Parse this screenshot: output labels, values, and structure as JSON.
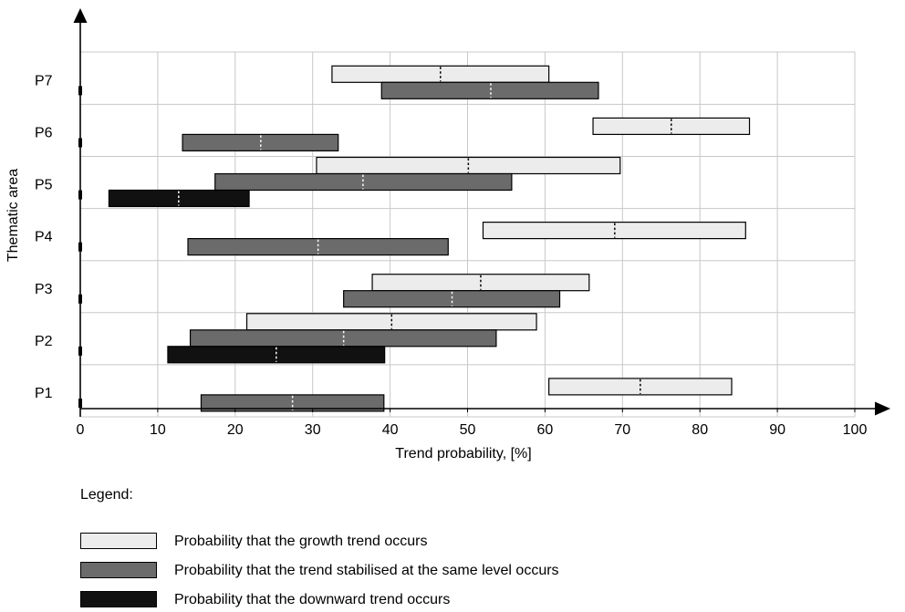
{
  "chart_data": {
    "type": "range-bar",
    "xlabel": "Trend probability, [%]",
    "ylabel": "Thematic area",
    "xlim": [
      0,
      100
    ],
    "x_ticks": [
      0,
      10,
      20,
      30,
      40,
      50,
      60,
      70,
      80,
      90,
      100
    ],
    "categories": [
      "P1",
      "P2",
      "P3",
      "P4",
      "P5",
      "P6",
      "P7"
    ],
    "grid": true,
    "series": [
      {
        "key": "growth",
        "color": "#ececec",
        "bars": [
          {
            "category": "P1",
            "start": 60.5,
            "end": 84.1,
            "mid": 72.3
          },
          {
            "category": "P2",
            "start": 21.5,
            "end": 58.9,
            "mid": 40.2
          },
          {
            "category": "P3",
            "start": 37.7,
            "end": 65.7,
            "mid": 51.7
          },
          {
            "category": "P4",
            "start": 52.0,
            "end": 85.9,
            "mid": 69.0
          },
          {
            "category": "P5",
            "start": 30.5,
            "end": 69.7,
            "mid": 50.1
          },
          {
            "category": "P6",
            "start": 66.2,
            "end": 86.4,
            "mid": 76.3
          },
          {
            "category": "P7",
            "start": 32.5,
            "end": 60.5,
            "mid": 46.5
          }
        ]
      },
      {
        "key": "stable",
        "color": "#6b6b6b",
        "bars": [
          {
            "category": "P1",
            "start": 15.6,
            "end": 39.2,
            "mid": 27.4
          },
          {
            "category": "P2",
            "start": 14.2,
            "end": 53.7,
            "mid": 34.0
          },
          {
            "category": "P3",
            "start": 34.0,
            "end": 61.9,
            "mid": 48.0
          },
          {
            "category": "P4",
            "start": 13.9,
            "end": 47.5,
            "mid": 30.7
          },
          {
            "category": "P5",
            "start": 17.4,
            "end": 55.7,
            "mid": 36.5
          },
          {
            "category": "P6",
            "start": 13.2,
            "end": 33.3,
            "mid": 23.3
          },
          {
            "category": "P7",
            "start": 38.9,
            "end": 66.9,
            "mid": 53.0
          }
        ]
      },
      {
        "key": "downward",
        "color": "#111111",
        "bars": [
          {
            "category": "P2",
            "start": 11.3,
            "end": 39.3,
            "mid": 25.3
          },
          {
            "category": "P5",
            "start": 3.7,
            "end": 21.8,
            "mid": 12.7
          }
        ]
      }
    ]
  },
  "legend": {
    "title": "Legend:",
    "items": [
      {
        "label": "Probability that the growth trend occurs",
        "color": "#ececec"
      },
      {
        "label": "Probability that the trend stabilised at the same level occurs",
        "color": "#6b6b6b"
      },
      {
        "label": "Probability that the downward trend occurs",
        "color": "#111111"
      }
    ]
  }
}
